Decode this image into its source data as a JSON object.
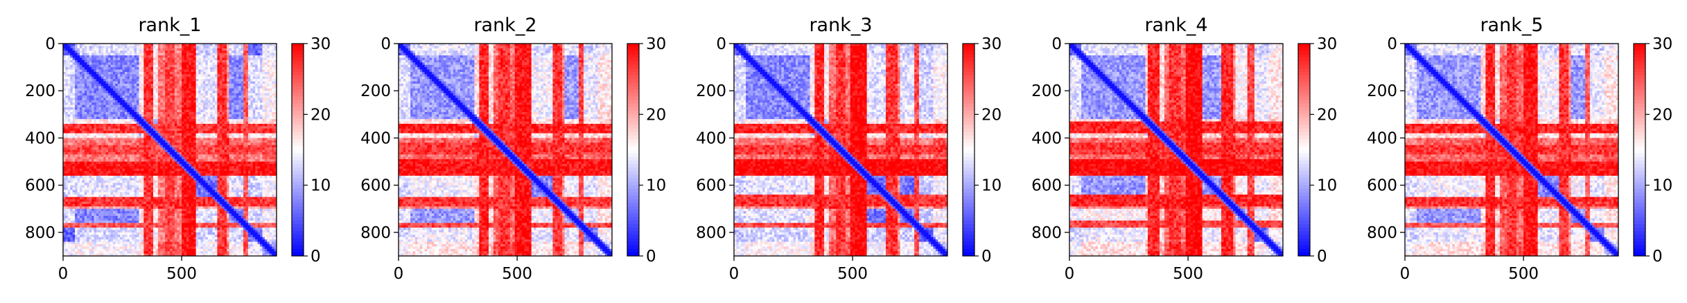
{
  "chart_data": [
    {
      "type": "heatmap",
      "title": "rank_1",
      "xlabel": "",
      "ylabel": "",
      "xlim": [
        0,
        900
      ],
      "ylim": [
        900,
        0
      ],
      "x_ticks": [
        0,
        500
      ],
      "x_tick_labels": [
        "0",
        "500"
      ],
      "y_ticks": [
        0,
        200,
        400,
        600,
        800
      ],
      "y_tick_labels": [
        "0",
        "200",
        "400",
        "600",
        "800"
      ],
      "colorbar": {
        "min": 0,
        "max": 30,
        "ticks": [
          0,
          10,
          20,
          30
        ],
        "tick_labels": [
          "0",
          "10",
          "20",
          "30"
        ],
        "colormap": "bwr"
      },
      "grid": false,
      "blocks": [
        {
          "range": [
            0,
            50
          ],
          "level": 6
        },
        {
          "range": [
            50,
            320
          ],
          "level": 8
        },
        {
          "range": [
            320,
            400
          ],
          "level": 12
        },
        {
          "range": [
            400,
            560
          ],
          "level": 26
        },
        {
          "range": [
            560,
            650
          ],
          "level": 7
        },
        {
          "range": [
            650,
            700
          ],
          "level": 22
        },
        {
          "range": [
            700,
            780
          ],
          "level": 8
        },
        {
          "range": [
            780,
            840
          ],
          "level": 6
        },
        {
          "range": [
            840,
            900
          ],
          "level": 10
        }
      ],
      "hot_bands": [
        {
          "range": [
            340,
            380
          ],
          "level": 27
        },
        {
          "range": [
            430,
            470
          ],
          "level": 26
        },
        {
          "range": [
            500,
            560
          ],
          "level": 29
        },
        {
          "range": [
            650,
            690
          ],
          "level": 27
        },
        {
          "range": [
            760,
            780
          ],
          "level": 25
        }
      ]
    },
    {
      "type": "heatmap",
      "title": "rank_2",
      "xlabel": "",
      "ylabel": "",
      "xlim": [
        0,
        900
      ],
      "ylim": [
        900,
        0
      ],
      "x_ticks": [
        0,
        500
      ],
      "x_tick_labels": [
        "0",
        "500"
      ],
      "y_ticks": [
        0,
        200,
        400,
        600,
        800
      ],
      "y_tick_labels": [
        "0",
        "200",
        "400",
        "600",
        "800"
      ],
      "colorbar": {
        "min": 0,
        "max": 30,
        "ticks": [
          0,
          10,
          20,
          30
        ],
        "tick_labels": [
          "0",
          "10",
          "20",
          "30"
        ],
        "colormap": "bwr"
      },
      "grid": false,
      "blocks": [
        {
          "range": [
            0,
            50
          ],
          "level": 6
        },
        {
          "range": [
            50,
            320
          ],
          "level": 9
        },
        {
          "range": [
            320,
            400
          ],
          "level": 13
        },
        {
          "range": [
            400,
            560
          ],
          "level": 27
        },
        {
          "range": [
            560,
            650
          ],
          "level": 8
        },
        {
          "range": [
            650,
            700
          ],
          "level": 23
        },
        {
          "range": [
            700,
            780
          ],
          "level": 9
        },
        {
          "range": [
            780,
            840
          ],
          "level": 7
        },
        {
          "range": [
            840,
            900
          ],
          "level": 12
        }
      ],
      "hot_bands": [
        {
          "range": [
            340,
            380
          ],
          "level": 28
        },
        {
          "range": [
            420,
            470
          ],
          "level": 27
        },
        {
          "range": [
            490,
            560
          ],
          "level": 29
        },
        {
          "range": [
            650,
            690
          ],
          "level": 27
        },
        {
          "range": [
            760,
            780
          ],
          "level": 26
        }
      ]
    },
    {
      "type": "heatmap",
      "title": "rank_3",
      "xlabel": "",
      "ylabel": "",
      "xlim": [
        0,
        900
      ],
      "ylim": [
        900,
        0
      ],
      "x_ticks": [
        0,
        500
      ],
      "x_tick_labels": [
        "0",
        "500"
      ],
      "y_ticks": [
        0,
        200,
        400,
        600,
        800
      ],
      "y_tick_labels": [
        "0",
        "200",
        "400",
        "600",
        "800"
      ],
      "colorbar": {
        "min": 0,
        "max": 30,
        "ticks": [
          0,
          10,
          20,
          30
        ],
        "tick_labels": [
          "0",
          "10",
          "20",
          "30"
        ],
        "colormap": "bwr"
      },
      "grid": false,
      "blocks": [
        {
          "range": [
            0,
            50
          ],
          "level": 6
        },
        {
          "range": [
            50,
            320
          ],
          "level": 8
        },
        {
          "range": [
            320,
            400
          ],
          "level": 12
        },
        {
          "range": [
            400,
            560
          ],
          "level": 27
        },
        {
          "range": [
            560,
            650
          ],
          "level": 7
        },
        {
          "range": [
            650,
            700
          ],
          "level": 24
        },
        {
          "range": [
            700,
            780
          ],
          "level": 7
        },
        {
          "range": [
            780,
            840
          ],
          "level": 5
        },
        {
          "range": [
            840,
            900
          ],
          "level": 11
        }
      ],
      "hot_bands": [
        {
          "range": [
            340,
            380
          ],
          "level": 28
        },
        {
          "range": [
            430,
            470
          ],
          "level": 27
        },
        {
          "range": [
            490,
            560
          ],
          "level": 30
        },
        {
          "range": [
            640,
            690
          ],
          "level": 27
        },
        {
          "range": [
            760,
            780
          ],
          "level": 26
        }
      ]
    },
    {
      "type": "heatmap",
      "title": "rank_4",
      "xlabel": "",
      "ylabel": "",
      "xlim": [
        0,
        900
      ],
      "ylim": [
        900,
        0
      ],
      "x_ticks": [
        0,
        500
      ],
      "x_tick_labels": [
        "0",
        "500"
      ],
      "y_ticks": [
        0,
        200,
        400,
        600,
        800
      ],
      "y_tick_labels": [
        "0",
        "200",
        "400",
        "600",
        "800"
      ],
      "colorbar": {
        "min": 0,
        "max": 30,
        "ticks": [
          0,
          10,
          20,
          30
        ],
        "tick_labels": [
          "0",
          "10",
          "20",
          "30"
        ],
        "colormap": "bwr"
      },
      "grid": false,
      "blocks": [
        {
          "range": [
            0,
            50
          ],
          "level": 6
        },
        {
          "range": [
            50,
            320
          ],
          "level": 9
        },
        {
          "range": [
            320,
            400
          ],
          "level": 14
        },
        {
          "range": [
            400,
            560
          ],
          "level": 27
        },
        {
          "range": [
            560,
            650
          ],
          "level": 9
        },
        {
          "range": [
            650,
            700
          ],
          "level": 24
        },
        {
          "range": [
            700,
            780
          ],
          "level": 10
        },
        {
          "range": [
            780,
            840
          ],
          "level": 7
        },
        {
          "range": [
            840,
            900
          ],
          "level": 12
        }
      ],
      "hot_bands": [
        {
          "range": [
            330,
            380
          ],
          "level": 28
        },
        {
          "range": [
            420,
            470
          ],
          "level": 27
        },
        {
          "range": [
            490,
            560
          ],
          "level": 30
        },
        {
          "range": [
            640,
            690
          ],
          "level": 28
        },
        {
          "range": [
            750,
            780
          ],
          "level": 26
        }
      ]
    },
    {
      "type": "heatmap",
      "title": "rank_5",
      "xlabel": "",
      "ylabel": "",
      "xlim": [
        0,
        900
      ],
      "ylim": [
        900,
        0
      ],
      "x_ticks": [
        0,
        500
      ],
      "x_tick_labels": [
        "0",
        "500"
      ],
      "y_ticks": [
        0,
        200,
        400,
        600,
        800
      ],
      "y_tick_labels": [
        "0",
        "200",
        "400",
        "600",
        "800"
      ],
      "colorbar": {
        "min": 0,
        "max": 30,
        "ticks": [
          0,
          10,
          20,
          30
        ],
        "tick_labels": [
          "0",
          "10",
          "20",
          "30"
        ],
        "colormap": "bwr"
      },
      "grid": false,
      "blocks": [
        {
          "range": [
            0,
            50
          ],
          "level": 6
        },
        {
          "range": [
            50,
            320
          ],
          "level": 9
        },
        {
          "range": [
            320,
            400
          ],
          "level": 13
        },
        {
          "range": [
            400,
            560
          ],
          "level": 27
        },
        {
          "range": [
            560,
            650
          ],
          "level": 8
        },
        {
          "range": [
            650,
            700
          ],
          "level": 23
        },
        {
          "range": [
            700,
            780
          ],
          "level": 9
        },
        {
          "range": [
            780,
            840
          ],
          "level": 7
        },
        {
          "range": [
            840,
            900
          ],
          "level": 12
        }
      ],
      "hot_bands": [
        {
          "range": [
            340,
            380
          ],
          "level": 28
        },
        {
          "range": [
            430,
            470
          ],
          "level": 27
        },
        {
          "range": [
            500,
            560
          ],
          "level": 29
        },
        {
          "range": [
            650,
            690
          ],
          "level": 27
        },
        {
          "range": [
            760,
            780
          ],
          "level": 25
        }
      ]
    }
  ]
}
